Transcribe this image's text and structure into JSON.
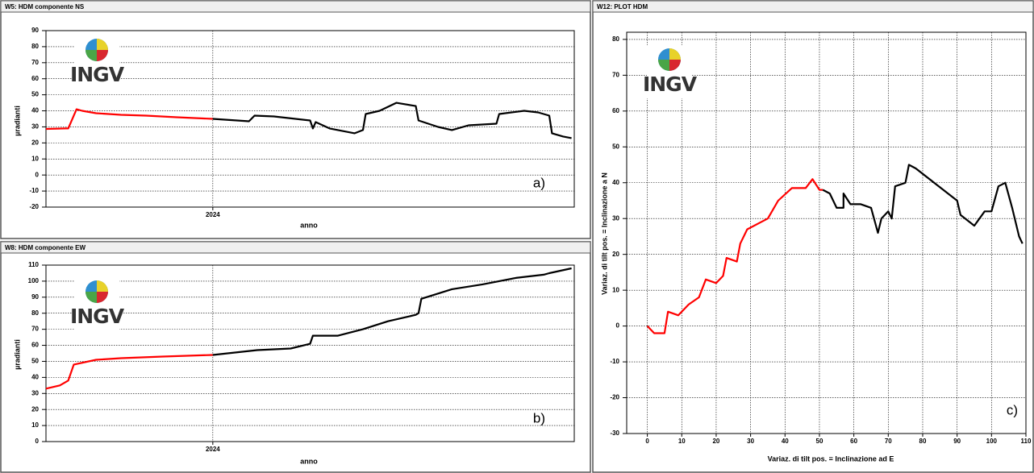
{
  "chart_data": [
    {
      "type": "line",
      "title": "W5: HDM componente NS",
      "xlabel": "anno",
      "ylabel": "µradianti",
      "logo_text": "INGV",
      "annotation": "a)",
      "xlim": [
        2023.4,
        2025.3
      ],
      "xticks": [
        2024
      ],
      "ylim": [
        -20,
        90
      ],
      "yticks": [
        -20,
        -10,
        0,
        10,
        20,
        30,
        40,
        50,
        60,
        70,
        80,
        90
      ],
      "grid": true,
      "series": [
        {
          "color": "#ff0000",
          "x": [
            2023.4,
            2023.47,
            2023.48,
            2023.51,
            2023.53,
            2023.58,
            2023.67,
            2023.76,
            2023.87,
            2024.0
          ],
          "values": [
            28.7,
            29,
            29,
            41,
            40,
            38.5,
            37.5,
            37,
            36,
            35
          ]
        },
        {
          "color": "#000000",
          "x": [
            2024.0,
            2024.13,
            2024.15,
            2024.22,
            2024.35,
            2024.36,
            2024.37,
            2024.42,
            2024.51,
            2024.54,
            2024.55,
            2024.6,
            2024.66,
            2024.73,
            2024.74,
            2024.81,
            2024.86,
            2024.92,
            2025.02,
            2025.03,
            2025.12,
            2025.17,
            2025.21,
            2025.22,
            2025.26,
            2025.29
          ],
          "values": [
            35,
            33.5,
            37,
            36.5,
            34,
            29,
            33,
            29,
            26,
            28,
            38,
            40,
            45,
            43,
            34,
            30,
            28,
            31,
            32,
            38,
            40,
            39,
            37,
            26,
            24,
            23
          ]
        }
      ]
    },
    {
      "type": "line",
      "title": "W8: HDM componente EW",
      "xlabel": "anno",
      "ylabel": "µradianti",
      "logo_text": "INGV",
      "annotation": "b)",
      "xlim": [
        2023.4,
        2025.3
      ],
      "xticks": [
        2024
      ],
      "ylim": [
        0,
        110
      ],
      "yticks": [
        0,
        10,
        20,
        30,
        40,
        50,
        60,
        70,
        80,
        90,
        100,
        110
      ],
      "grid": true,
      "series": [
        {
          "color": "#ff0000",
          "x": [
            2023.4,
            2023.45,
            2023.48,
            2023.5,
            2023.58,
            2023.67,
            2023.82,
            2024.0
          ],
          "values": [
            33,
            35,
            38,
            48,
            51,
            52,
            53,
            54
          ]
        },
        {
          "color": "#000000",
          "x": [
            2024.0,
            2024.16,
            2024.28,
            2024.35,
            2024.36,
            2024.45,
            2024.54,
            2024.63,
            2024.73,
            2024.74,
            2024.75,
            2024.86,
            2024.97,
            2025.09,
            2025.19,
            2025.21,
            2025.29
          ],
          "values": [
            54,
            57,
            58,
            61,
            66,
            66,
            70,
            75,
            79,
            80,
            89,
            95,
            98,
            102,
            104,
            105,
            108
          ]
        }
      ]
    },
    {
      "type": "line",
      "title": "W12: PLOT HDM",
      "xlabel": "Variaz. di tilt pos. = Inclinazione ad E",
      "ylabel": "Variaz. di tilt pos. = Inclinazione a N",
      "logo_text": "INGV",
      "annotation": "c)",
      "xlim": [
        -6,
        110
      ],
      "xticks": [
        0,
        10,
        20,
        30,
        40,
        50,
        60,
        70,
        80,
        90,
        100,
        110
      ],
      "ylim": [
        -30,
        82
      ],
      "yticks": [
        -30,
        -20,
        -10,
        0,
        10,
        20,
        30,
        40,
        50,
        60,
        70,
        80
      ],
      "grid": true,
      "series": [
        {
          "color": "#ff0000",
          "x": [
            0,
            2,
            5,
            6,
            9,
            12,
            15,
            17,
            20,
            22,
            23,
            26,
            27,
            29,
            33,
            35,
            38,
            42,
            46,
            48,
            50,
            51
          ],
          "values": [
            0,
            -2,
            -2,
            4,
            3,
            6,
            8,
            13,
            12,
            14,
            19,
            18,
            23,
            27,
            29,
            30,
            35,
            38.5,
            38.5,
            41,
            38,
            38
          ]
        },
        {
          "color": "#000000",
          "x": [
            51,
            53,
            55,
            57,
            57,
            59,
            62,
            65,
            67,
            68,
            70,
            71,
            72,
            75,
            76,
            78,
            90,
            91,
            95,
            98,
            100,
            102,
            104,
            106,
            108,
            109
          ],
          "values": [
            38,
            37,
            33,
            33,
            37,
            34,
            34,
            33,
            26,
            30,
            32,
            30,
            39,
            40,
            45,
            44,
            35,
            31,
            28,
            32,
            32,
            39,
            40,
            33,
            25,
            23
          ]
        }
      ]
    }
  ]
}
